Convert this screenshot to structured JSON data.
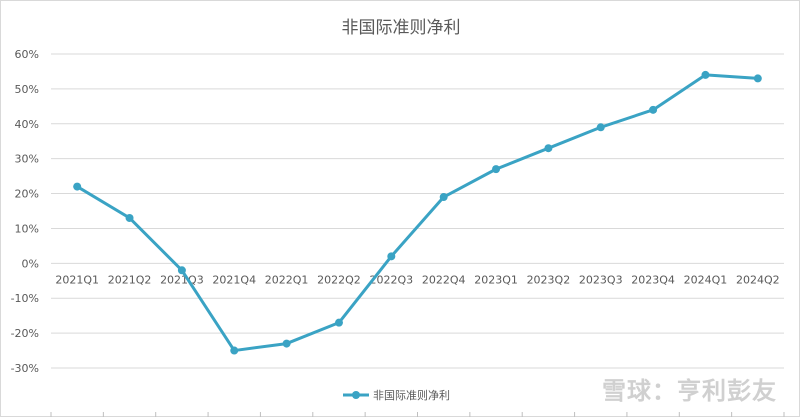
{
  "chart_data": {
    "type": "line",
    "title": "非国际准则净利",
    "categories": [
      "2021Q1",
      "2021Q2",
      "2021Q3",
      "2021Q4",
      "2022Q1",
      "2022Q2",
      "2022Q3",
      "2022Q4",
      "2023Q1",
      "2023Q2",
      "2023Q3",
      "2023Q4",
      "2024Q1",
      "2024Q2"
    ],
    "series": [
      {
        "name": "非国际准则净利",
        "values": [
          22,
          13,
          -2,
          -25,
          -23,
          -17,
          2,
          19,
          27,
          33,
          39,
          44,
          54,
          53
        ]
      }
    ],
    "y_ticks": [
      "60%",
      "50%",
      "40%",
      "30%",
      "20%",
      "10%",
      "0%",
      "-10%",
      "-20%",
      "-30%"
    ],
    "ylim": [
      -30,
      60
    ],
    "y_unit": "%",
    "grid": true,
    "legend_position": "bottom-center",
    "series_color": "#3aa3c4"
  },
  "watermark": "雪球：亨利彭友"
}
